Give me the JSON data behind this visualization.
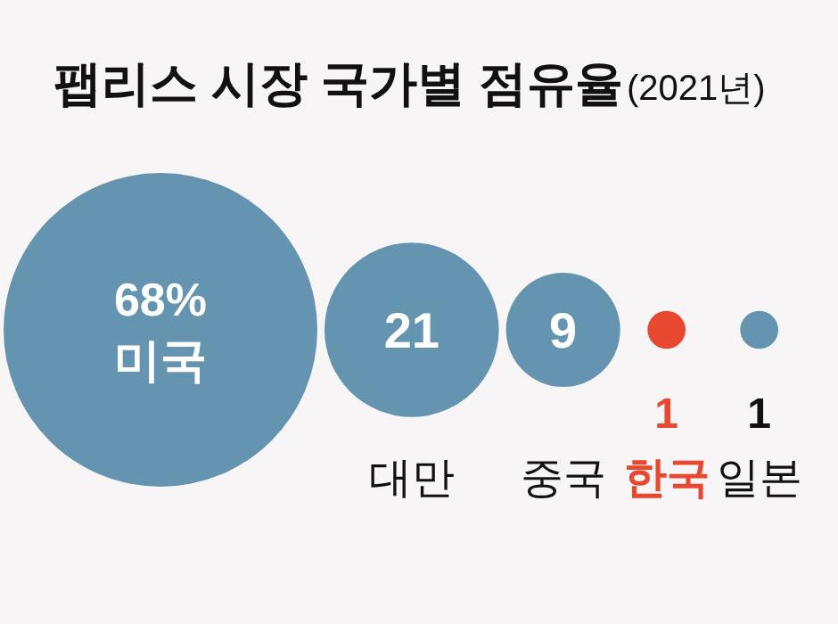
{
  "chart_data": {
    "type": "other",
    "title": "팹리스 시장 국가별 점유율",
    "subtitle": "(2021년)",
    "categories": [
      "미국",
      "대만",
      "중국",
      "한국",
      "일본"
    ],
    "values": [
      68,
      21,
      9,
      1,
      1
    ],
    "value_labels": [
      "68%",
      "21",
      "9",
      "1",
      "1"
    ],
    "colors": [
      "#6594b0",
      "#6594b0",
      "#6594b0",
      "#e8482f",
      "#6594b0"
    ]
  }
}
